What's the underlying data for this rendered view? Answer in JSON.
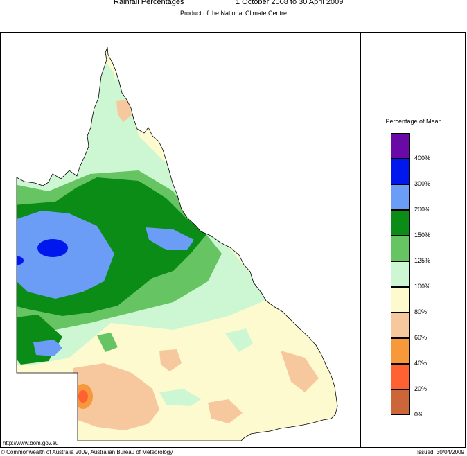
{
  "header": {
    "title": "Rainfall Percentages",
    "period": "1 October 2008 to 30 April 2009",
    "subtitle": "Product of the National Climate Centre"
  },
  "map": {
    "region": "Queensland",
    "land_outline_color": "#000000",
    "background_color": "#ffffff"
  },
  "legend": {
    "title": "Percentage of Mean",
    "bands": [
      {
        "range": "400%+",
        "color": "#6a0aa6"
      },
      {
        "range": "300-400%",
        "color": "#0018ee"
      },
      {
        "range": "200-300%",
        "color": "#6b9cf6"
      },
      {
        "range": "150-200%",
        "color": "#0b8c16"
      },
      {
        "range": "125-150%",
        "color": "#67c463"
      },
      {
        "range": "100-125%",
        "color": "#cdf7d3"
      },
      {
        "range": "80-100%",
        "color": "#fdfad0"
      },
      {
        "range": "60-80%",
        "color": "#f7c79d"
      },
      {
        "range": "40-60%",
        "color": "#f7983a"
      },
      {
        "range": "20-40%",
        "color": "#ff6133"
      },
      {
        "range": "0-20%",
        "color": "#cc6537"
      }
    ],
    "ticks": [
      "400%",
      "300%",
      "200%",
      "150%",
      "125%",
      "100%",
      "80%",
      "60%",
      "40%",
      "20%",
      "0%"
    ]
  },
  "footer": {
    "url": "http://www.bom.gov.au",
    "copyright": "© Commonwealth of Australia 2009, Australian Bureau of Meteorology",
    "issued": "Issued: 30/04/2009"
  }
}
